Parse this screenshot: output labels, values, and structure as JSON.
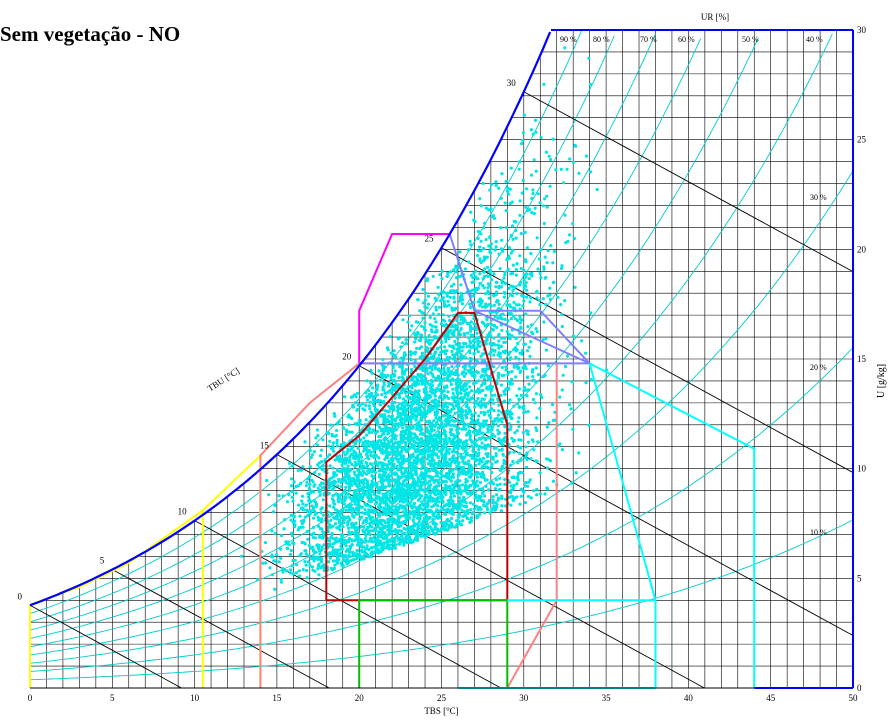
{
  "chart_data": {
    "type": "scatter",
    "chart_kind": "psychrometric",
    "title": "Sem vegetação - NO",
    "xlabel": "TBS [°C]",
    "ylabel": "U [g/kg]",
    "wb_label": "TBU [°C]",
    "rh_label": "UR [%]",
    "xlim": [
      0,
      50
    ],
    "ylim": [
      0,
      30
    ],
    "x_ticks": [
      "0",
      "5",
      "10",
      "15",
      "20",
      "25",
      "30",
      "35",
      "40",
      "45",
      "50"
    ],
    "y_ticks": [
      "0",
      "5",
      "10",
      "15",
      "20",
      "25",
      "30"
    ],
    "wb_ticks": [
      "0",
      "5",
      "10",
      "15",
      "20",
      "25",
      "30"
    ],
    "rh_top_labels": [
      "90 %",
      "80 %",
      "70 %",
      "60 %",
      "50 %",
      "40 %"
    ],
    "rh_side_labels": [
      "30 %",
      "20 %",
      "10 %"
    ],
    "grid": true,
    "zones": [
      {
        "color": "#ffff00",
        "points": [
          [
            0,
            0
          ],
          [
            0,
            3.8
          ],
          [
            3,
            4.6
          ],
          [
            6,
            5.7
          ],
          [
            10.5,
            8.1
          ],
          [
            14,
            10.6
          ],
          [
            14,
            0
          ]
        ]
      },
      {
        "color": "#ffff00",
        "points": [
          [
            10.5,
            0
          ],
          [
            10.5,
            8.1
          ]
        ]
      },
      {
        "color": "#ff8080",
        "points": [
          [
            14,
            0
          ],
          [
            14,
            10.6
          ],
          [
            17,
            13
          ],
          [
            20,
            14.8
          ],
          [
            32,
            14.8
          ],
          [
            32,
            4
          ],
          [
            29,
            0
          ]
        ]
      },
      {
        "color": "#ff00ff",
        "points": [
          [
            20,
            14.8
          ],
          [
            20,
            17.2
          ],
          [
            22,
            20.7
          ],
          [
            25.5,
            20.7
          ]
        ]
      },
      {
        "color": "#8080ff",
        "points": [
          [
            20,
            14.8
          ],
          [
            34,
            14.8
          ]
        ]
      },
      {
        "color": "#8080ff",
        "points": [
          [
            25.5,
            20.7
          ],
          [
            27,
            17.2
          ],
          [
            34,
            14.8
          ]
        ]
      },
      {
        "color": "#8080ff",
        "points": [
          [
            27,
            17.2
          ],
          [
            31,
            17.2
          ],
          [
            34,
            14.8
          ]
        ]
      },
      {
        "color": "#c00000",
        "points": [
          [
            18,
            4
          ],
          [
            18,
            10.3
          ],
          [
            20,
            11.5
          ],
          [
            24,
            15
          ],
          [
            26,
            17.1
          ],
          [
            27,
            17.1
          ],
          [
            29,
            12
          ],
          [
            29,
            4
          ],
          [
            18,
            4
          ]
        ]
      },
      {
        "color": "#00c000",
        "points": [
          [
            20,
            0
          ],
          [
            20,
            4
          ],
          [
            29,
            4
          ],
          [
            29,
            0
          ]
        ]
      },
      {
        "color": "#00ffff",
        "points": [
          [
            34,
            14.8
          ],
          [
            38,
            4
          ],
          [
            38,
            0
          ]
        ]
      },
      {
        "color": "#00ffff",
        "points": [
          [
            29,
            4
          ],
          [
            38,
            4
          ]
        ]
      },
      {
        "color": "#00ffff",
        "points": [
          [
            34,
            14.8
          ],
          [
            44,
            10.9
          ],
          [
            44,
            0
          ]
        ]
      },
      {
        "color": "#00ffff",
        "points": [
          [
            26,
            0
          ],
          [
            38,
            0
          ]
        ]
      }
    ],
    "sample_count": 5200,
    "colors": {
      "points": "#00e6e6",
      "rh_curves": "#00cccc",
      "grid": "#000000",
      "saturation": "#0000ff",
      "axis": "#0000ff"
    }
  }
}
